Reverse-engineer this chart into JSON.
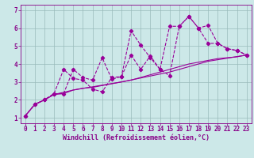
{
  "xlabel": "Windchill (Refroidissement éolien,°C)",
  "bg_color": "#cce8e8",
  "line_color": "#990099",
  "grid_color": "#99bbbb",
  "xlim": [
    -0.5,
    23.5
  ],
  "ylim": [
    0.7,
    7.3
  ],
  "xticks": [
    0,
    1,
    2,
    3,
    4,
    5,
    6,
    7,
    8,
    9,
    10,
    11,
    12,
    13,
    14,
    15,
    16,
    17,
    18,
    19,
    20,
    21,
    22,
    23
  ],
  "yticks": [
    1,
    2,
    3,
    4,
    5,
    6,
    7
  ],
  "line1_x": [
    0,
    1,
    2,
    3,
    4,
    5,
    6,
    7,
    8,
    9,
    10,
    11,
    12,
    13,
    14,
    15,
    16,
    17,
    18,
    19,
    20,
    21,
    22,
    23
  ],
  "line1_y": [
    1.1,
    1.75,
    2.0,
    2.3,
    2.35,
    2.55,
    2.65,
    2.7,
    2.8,
    2.9,
    3.0,
    3.1,
    3.25,
    3.4,
    3.55,
    3.7,
    3.85,
    4.0,
    4.1,
    4.2,
    4.3,
    4.35,
    4.4,
    4.5
  ],
  "line2_x": [
    0,
    1,
    2,
    3,
    4,
    5,
    6,
    7,
    8,
    9,
    10,
    11,
    12,
    13,
    14,
    15,
    16,
    17,
    18,
    19,
    20,
    21,
    22,
    23
  ],
  "line2_y": [
    1.1,
    1.75,
    2.0,
    2.35,
    3.7,
    3.2,
    3.1,
    2.6,
    2.45,
    3.25,
    3.3,
    5.85,
    5.05,
    4.35,
    3.7,
    3.35,
    6.1,
    6.65,
    6.0,
    6.15,
    5.15,
    4.85,
    4.75,
    4.5
  ],
  "line3_x": [
    0,
    1,
    2,
    3,
    4,
    5,
    6,
    7,
    8,
    9,
    10,
    11,
    12,
    13,
    14,
    15,
    16,
    17,
    18,
    19,
    20,
    21,
    22,
    23
  ],
  "line3_y": [
    1.1,
    1.75,
    2.0,
    2.35,
    2.35,
    3.7,
    3.25,
    3.1,
    4.35,
    3.15,
    3.3,
    4.5,
    3.7,
    4.45,
    3.7,
    6.1,
    6.1,
    6.65,
    6.0,
    5.15,
    5.15,
    4.85,
    4.75,
    4.5
  ],
  "line4_x": [
    0,
    1,
    2,
    3,
    5,
    10,
    15,
    19,
    23
  ],
  "line4_y": [
    1.1,
    1.75,
    2.0,
    2.3,
    2.55,
    3.0,
    3.55,
    4.15,
    4.5
  ],
  "font_color": "#880088",
  "xlabel_fontsize": 6,
  "tick_fontsize": 5.5
}
